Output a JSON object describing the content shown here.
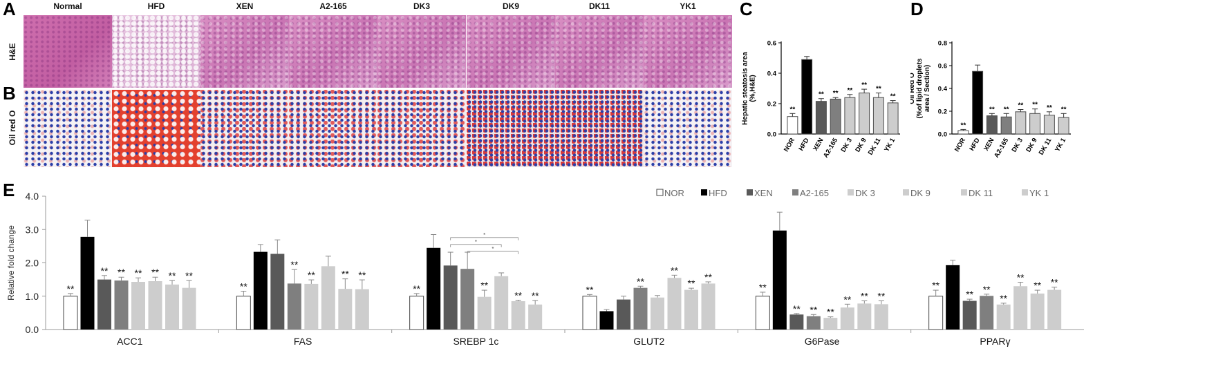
{
  "panels": {
    "A": "A",
    "B": "B",
    "C": "C",
    "D": "D",
    "E": "E"
  },
  "micrographs": {
    "columns": [
      "Normal",
      "HFD",
      "XEN",
      "A2-165",
      "DK3",
      "DK9",
      "DK11",
      "YK1"
    ],
    "rows": [
      "H&E",
      "Oil red O"
    ]
  },
  "colors": {
    "NOR": "#ffffff",
    "HFD": "#000000",
    "XEN": "#595959",
    "A2-165": "#7f7f7f",
    "DK 3": "#cdcdcd",
    "DK 9": "#cdcdcd",
    "DK 11": "#cdcdcd",
    "YK 1": "#cdcdcd",
    "frame": "#4d4d4d"
  },
  "chart_data": [
    {
      "id": "C",
      "type": "bar",
      "ylabel_lines": [
        "Hepatic steatosis area",
        "(%,H&E)"
      ],
      "categories": [
        "NOR",
        "HFD",
        "XEN",
        "A2-165",
        "DK 3",
        "DK 9",
        "DK 11",
        "YK 1"
      ],
      "values": [
        0.115,
        0.49,
        0.215,
        0.23,
        0.24,
        0.27,
        0.24,
        0.205
      ],
      "errors": [
        0.02,
        0.02,
        0.018,
        0.01,
        0.02,
        0.025,
        0.03,
        0.015
      ],
      "annotations": [
        "**",
        "",
        "**",
        "**",
        "**",
        "**",
        "**",
        "**"
      ],
      "ylim": [
        0,
        0.6
      ],
      "yticks": [
        "0.0",
        "0.2",
        "0.4",
        "0.6"
      ],
      "ytick_values": [
        0,
        0.2,
        0.4,
        0.6
      ]
    },
    {
      "id": "D",
      "type": "bar",
      "ylabel_lines": [
        "Oil Red O",
        "(%of lipid droplets",
        "area / Section)"
      ],
      "categories": [
        "NOR",
        "HFD",
        "XEN",
        "A2-165",
        "DK 3",
        "DK 9",
        "DK 11",
        "YK 1"
      ],
      "values": [
        0.03,
        0.55,
        0.16,
        0.15,
        0.195,
        0.18,
        0.165,
        0.145
      ],
      "errors": [
        0.01,
        0.055,
        0.02,
        0.03,
        0.02,
        0.04,
        0.03,
        0.035
      ],
      "annotations": [
        "**",
        "",
        "**",
        "**",
        "**",
        "**",
        "**",
        "**"
      ],
      "ylim": [
        0,
        0.8
      ],
      "yticks": [
        "0.0",
        "0.2",
        "0.4",
        "0.6",
        "0.8"
      ],
      "ytick_values": [
        0,
        0.2,
        0.4,
        0.6,
        0.8
      ]
    },
    {
      "id": "E",
      "type": "bar",
      "ylabel": "Relative fold change",
      "categories": [
        "ACC1",
        "FAS",
        "SREBP 1c",
        "GLUT2",
        "G6Pase",
        "PPARγ"
      ],
      "ylim": [
        0,
        4
      ],
      "yticks": [
        "0.0",
        "1.0",
        "2.0",
        "3.0",
        "4.0"
      ],
      "ytick_values": [
        0,
        1,
        2,
        3,
        4
      ],
      "legend_position": "top-right",
      "series": [
        {
          "name": "NOR",
          "values": [
            1.0,
            1.0,
            1.0,
            1.0,
            1.0,
            1.0
          ],
          "errors": [
            0.08,
            0.15,
            0.08,
            0.05,
            0.12,
            0.18
          ],
          "annotations": [
            "**",
            "**",
            "**",
            "**",
            "**",
            "**"
          ]
        },
        {
          "name": "HFD",
          "values": [
            2.78,
            2.33,
            2.45,
            0.55,
            2.97,
            1.93
          ],
          "errors": [
            0.5,
            0.22,
            0.4,
            0.05,
            0.55,
            0.15
          ],
          "annotations": [
            "",
            "",
            "",
            "",
            "",
            ""
          ]
        },
        {
          "name": "XEN",
          "values": [
            1.5,
            2.27,
            1.92,
            0.9,
            0.45,
            0.86
          ],
          "errors": [
            0.12,
            0.42,
            0.4,
            0.1,
            0.03,
            0.05
          ],
          "annotations": [
            "**",
            "",
            "",
            "",
            "**",
            "**"
          ]
        },
        {
          "name": "A2-165",
          "values": [
            1.47,
            1.38,
            1.82,
            1.25,
            0.4,
            1.01
          ],
          "errors": [
            0.1,
            0.42,
            0.5,
            0.05,
            0.05,
            0.05
          ],
          "annotations": [
            "**",
            "**",
            "",
            "**",
            "**",
            "**"
          ]
        },
        {
          "name": "DK 3",
          "values": [
            1.43,
            1.37,
            0.98,
            0.96,
            0.35,
            0.75
          ],
          "errors": [
            0.12,
            0.12,
            0.2,
            0.06,
            0.03,
            0.04
          ],
          "annotations": [
            "**",
            "**",
            "**",
            "",
            "**",
            "**"
          ]
        },
        {
          "name": "DK 9",
          "values": [
            1.45,
            1.9,
            1.6,
            1.55,
            0.66,
            1.3
          ],
          "errors": [
            0.12,
            0.3,
            0.1,
            0.08,
            0.1,
            0.12
          ],
          "annotations": [
            "**",
            "",
            "",
            "**",
            "**",
            "**"
          ]
        },
        {
          "name": "DK 11",
          "values": [
            1.35,
            1.22,
            0.85,
            1.19,
            0.78,
            1.08
          ],
          "errors": [
            0.12,
            0.3,
            0.03,
            0.05,
            0.08,
            0.1
          ],
          "annotations": [
            "**",
            "**",
            "**",
            "**",
            "**",
            "**"
          ]
        },
        {
          "name": "YK 1",
          "values": [
            1.25,
            1.21,
            0.75,
            1.38,
            0.76,
            1.19
          ],
          "errors": [
            0.22,
            0.28,
            0.12,
            0.05,
            0.1,
            0.08
          ],
          "annotations": [
            "**",
            "**",
            "**",
            "**",
            "**",
            "**"
          ]
        }
      ],
      "brackets": [
        {
          "group": "SREBP 1c",
          "from": "XEN",
          "to": "DK 11",
          "label": "*"
        },
        {
          "group": "SREBP 1c",
          "from": "XEN",
          "to": "DK 9",
          "label": "*"
        },
        {
          "group": "SREBP 1c",
          "from": "A2-165",
          "to": "DK 11",
          "label": "*"
        }
      ]
    }
  ]
}
